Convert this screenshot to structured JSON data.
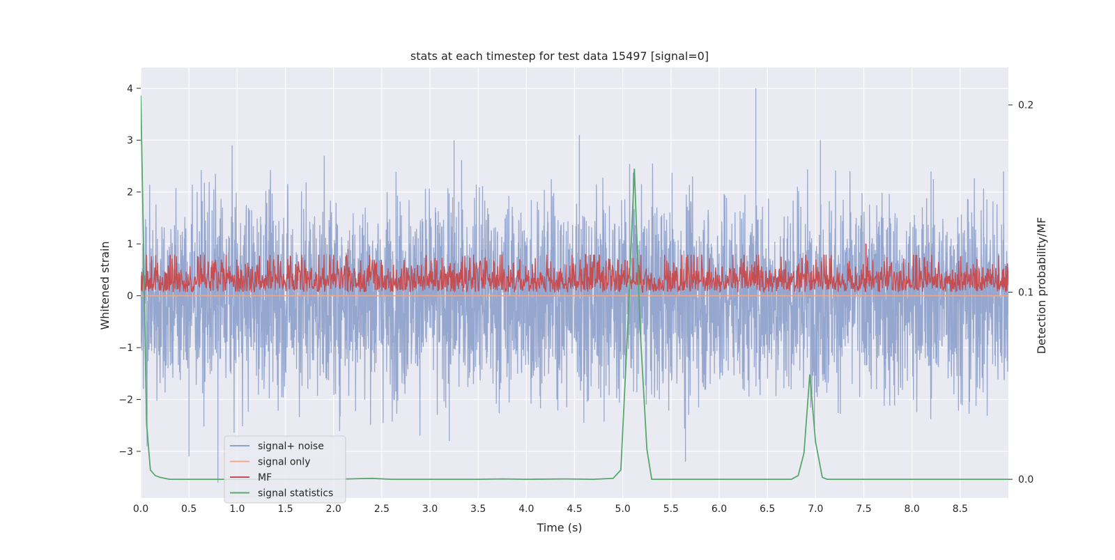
{
  "chart_data": {
    "type": "line",
    "title": "stats at each timestep for test data 15497 [signal=0]",
    "xlabel": "Time (s)",
    "ylabel": "Whitened strain",
    "y2label": "Detection probability/MF",
    "xlim": [
      0.0,
      9.0
    ],
    "ylim": [
      -3.9,
      4.4
    ],
    "y2lim": [
      -0.01,
      0.22
    ],
    "xticks": [
      "0.0",
      "0.5",
      "1.0",
      "1.5",
      "2.0",
      "2.5",
      "3.0",
      "3.5",
      "4.0",
      "4.5",
      "5.0",
      "5.5",
      "6.0",
      "6.5",
      "7.0",
      "7.5",
      "8.0",
      "8.5"
    ],
    "yticks": [
      "4",
      "3",
      "2",
      "1",
      "0",
      "−1",
      "−2",
      "−3"
    ],
    "y2ticks": [
      "0.2",
      "0.1",
      "0.0"
    ],
    "grid": true,
    "legend_position": "lower-left",
    "colors": {
      "background": "#eaeaf2",
      "grid": "#ffffff",
      "noise": "#8da0cb",
      "signal_only": "#f0a88a",
      "mf": "#c44e52",
      "stats": "#55a868"
    },
    "series": [
      {
        "name": "signal+ noise",
        "axis": "left",
        "style": "dense-noise",
        "amplitude_envelope": {
          "x": [
            0.0,
            9.0
          ],
          "upper": [
            2.5,
            2.5
          ],
          "lower": [
            -2.5,
            -2.5
          ]
        },
        "peaks": [
          {
            "x": 0.8,
            "y": -3.6
          },
          {
            "x": 0.5,
            "y": -3.1
          },
          {
            "x": 4.55,
            "y": 3.1
          },
          {
            "x": 6.38,
            "y": 4.0
          },
          {
            "x": 7.05,
            "y": 3.0
          },
          {
            "x": 5.65,
            "y": -3.2
          },
          {
            "x": 3.25,
            "y": 3.0
          },
          {
            "x": 3.2,
            "y": -2.8
          },
          {
            "x": 8.95,
            "y": 2.4
          }
        ]
      },
      {
        "name": "signal only",
        "axis": "left",
        "x": [
          0.0,
          9.0
        ],
        "y": [
          0.0,
          0.0
        ]
      },
      {
        "name": "MF",
        "axis": "right",
        "style": "dense-noise",
        "baseline": 0.1,
        "range": [
          0.1,
          0.12
        ],
        "peaks": [
          {
            "x": 2.15,
            "y": 0.123
          },
          {
            "x": 7.52,
            "y": 0.126
          }
        ]
      },
      {
        "name": "signal statistics",
        "axis": "right",
        "x": [
          0.0,
          0.03,
          0.06,
          0.1,
          0.15,
          0.2,
          0.3,
          0.5,
          1.0,
          1.5,
          2.0,
          2.4,
          2.6,
          3.0,
          3.5,
          3.75,
          4.0,
          4.4,
          4.7,
          4.9,
          4.98,
          5.05,
          5.12,
          5.18,
          5.25,
          5.3,
          5.5,
          6.0,
          6.5,
          6.75,
          6.82,
          6.88,
          6.94,
          7.0,
          7.07,
          7.12,
          7.5,
          8.0,
          8.5,
          9.0
        ],
        "y": [
          0.205,
          0.12,
          0.03,
          0.005,
          0.002,
          0.001,
          0.0,
          0.0,
          0.0,
          0.0,
          0.0,
          0.0005,
          0.0,
          0.0,
          0.0,
          0.0002,
          0.0,
          0.0002,
          0.0,
          0.0005,
          0.005,
          0.08,
          0.166,
          0.08,
          0.016,
          0.0,
          0.0,
          0.0,
          0.0,
          0.0,
          0.002,
          0.014,
          0.056,
          0.02,
          0.001,
          0.0,
          0.0,
          0.0,
          0.0,
          0.0
        ]
      }
    ]
  }
}
